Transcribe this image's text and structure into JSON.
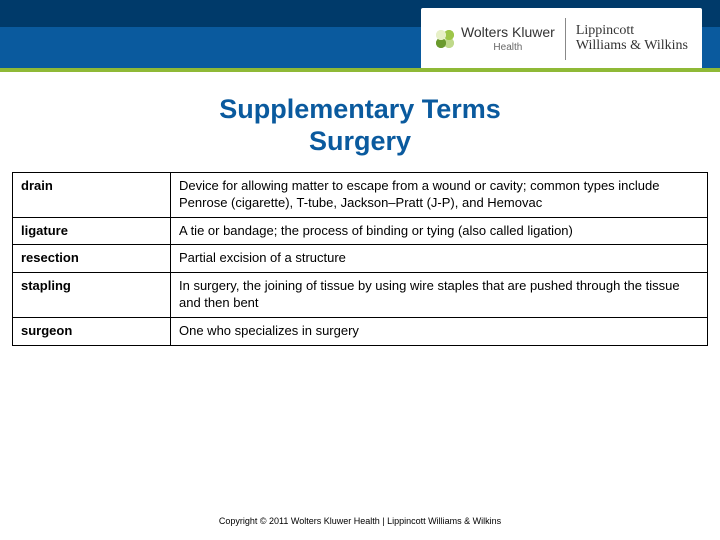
{
  "header": {
    "brand_left": "Wolters Kluwer",
    "brand_left_sub": "Health",
    "brand_right_line1": "Lippincott",
    "brand_right_line2": "Williams & Wilkins"
  },
  "title_line1": "Supplementary Terms",
  "title_line2": "Surgery",
  "table": {
    "rows": [
      {
        "term": "drain",
        "definition": "Device for allowing matter to escape from a wound or cavity; common types include Penrose (cigarette), T-tube, Jackson–Pratt (J-P), and Hemovac"
      },
      {
        "term": "ligature",
        "definition": "A tie or bandage; the process of binding or tying (also called ligation)"
      },
      {
        "term": "resection",
        "definition": "Partial excision of a structure"
      },
      {
        "term": "stapling",
        "definition": "In surgery, the joining of tissue by using wire staples that are pushed through the tissue and then bent"
      },
      {
        "term": "surgeon",
        "definition": "One who specializes in surgery"
      }
    ]
  },
  "copyright": "Copyright © 2011 Wolters Kluwer Health | Lippincott Williams & Wilkins",
  "colors": {
    "title_color": "#0a5a9e",
    "band_top": "#003a6a",
    "band_bottom": "#0a5a9e",
    "accent_green": "#8fb936",
    "border": "#000000"
  }
}
